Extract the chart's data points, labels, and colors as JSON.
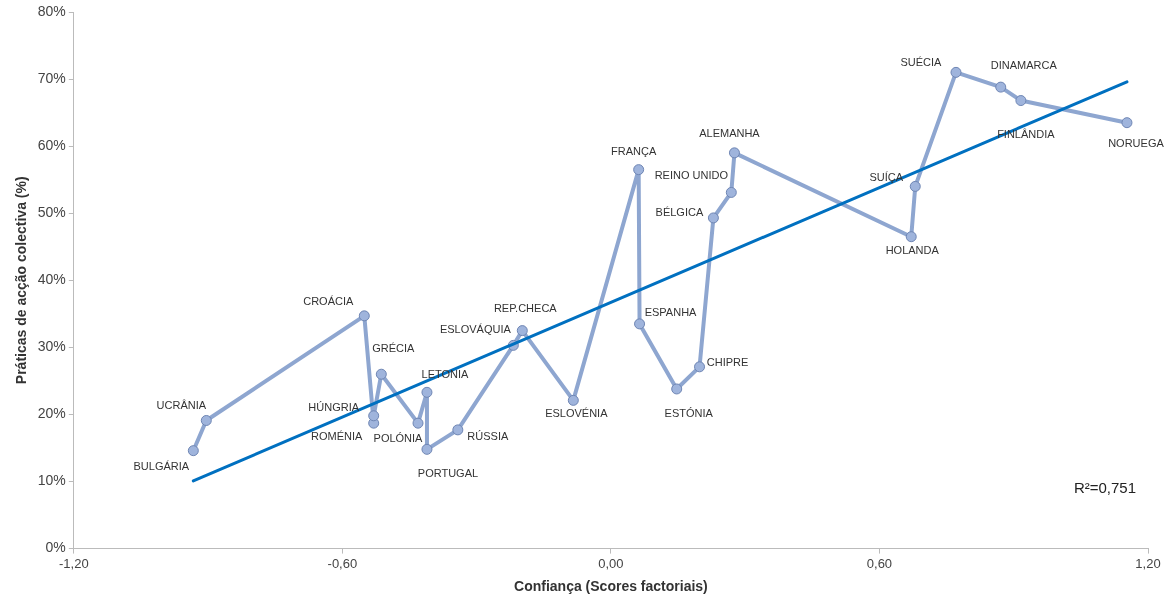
{
  "chart_data": {
    "type": "line",
    "xlabel": "Confiança (Scores factoriais)",
    "ylabel": "Práticas de acção colectiva (%)",
    "xlim": [
      -1.2,
      1.2
    ],
    "xticks": [
      {
        "value": -1.2,
        "label": "-1,20"
      },
      {
        "value": -0.6,
        "label": "-0,60"
      },
      {
        "value": 0,
        "label": "0,00"
      },
      {
        "value": 0.6,
        "label": "0,60"
      },
      {
        "value": 1.2,
        "label": "1,20"
      }
    ],
    "ylim": [
      0,
      80
    ],
    "yticks": [
      {
        "value": 0,
        "label": "0%"
      },
      {
        "value": 10,
        "label": "10%"
      },
      {
        "value": 20,
        "label": "20%"
      },
      {
        "value": 30,
        "label": "30%"
      },
      {
        "value": 40,
        "label": "40%"
      },
      {
        "value": 50,
        "label": "50%"
      },
      {
        "value": 60,
        "label": "60%"
      },
      {
        "value": 70,
        "label": "70%"
      },
      {
        "value": 80,
        "label": "80%"
      }
    ],
    "grid": false,
    "legend": false,
    "marker": "circle",
    "line_style": "solid",
    "series": [
      {
        "type": "line",
        "color": "#8ea6d0",
        "x": [
          -0.933,
          -0.904,
          -0.551,
          -0.53,
          -0.53,
          -0.513,
          -0.431,
          -0.411,
          -0.411,
          -0.342,
          -0.218,
          -0.198,
          -0.084,
          0.062,
          0.064,
          0.147,
          0.198,
          0.229,
          0.269,
          0.276,
          0.671,
          0.68,
          0.771,
          0.871,
          0.916,
          1.153
        ],
        "values": [
          14.6,
          19.1,
          34.7,
          18.7,
          19.8,
          26.0,
          18.7,
          23.3,
          14.8,
          17.7,
          30.3,
          32.5,
          22.1,
          56.5,
          33.5,
          23.8,
          27.1,
          49.3,
          53.1,
          59.0,
          46.5,
          54.0,
          71.0,
          68.8,
          66.8,
          63.5
        ]
      },
      {
        "type": "line",
        "color": "#0070c0",
        "marker": "none",
        "x": [
          -0.933,
          1.153
        ],
        "values": [
          10.1,
          69.6
        ]
      }
    ],
    "annotations": [
      {
        "text": "BULGÁRIA",
        "x": -0.933,
        "y": 14.6
      },
      {
        "text": "UCRÂNIA",
        "x": -0.904,
        "y": 19.1
      },
      {
        "text": "CROÁCIA",
        "x": -0.551,
        "y": 34.7
      },
      {
        "text": "ROMÉNIA",
        "x": -0.53,
        "y": 18.7
      },
      {
        "text": "HÚNGRIA",
        "x": -0.53,
        "y": 19.8
      },
      {
        "text": "GRÉCIA",
        "x": -0.513,
        "y": 26.0
      },
      {
        "text": "POLÓNIA",
        "x": -0.431,
        "y": 18.7
      },
      {
        "text": "LETONIA",
        "x": -0.411,
        "y": 23.3
      },
      {
        "text": "PORTUGAL",
        "x": -0.411,
        "y": 14.8
      },
      {
        "text": "RÚSSIA",
        "x": -0.342,
        "y": 17.7
      },
      {
        "text": "ESLOVÁQUIA",
        "x": -0.218,
        "y": 30.3
      },
      {
        "text": "REP.CHECA",
        "x": -0.198,
        "y": 32.5
      },
      {
        "text": "ESLOVÉNIA",
        "x": -0.084,
        "y": 22.1
      },
      {
        "text": "FRANÇA",
        "x": 0.062,
        "y": 56.5
      },
      {
        "text": "ESPANHA",
        "x": 0.064,
        "y": 33.5
      },
      {
        "text": "ESTÓNIA",
        "x": 0.147,
        "y": 23.8
      },
      {
        "text": "CHIPRE",
        "x": 0.198,
        "y": 27.1
      },
      {
        "text": "BÉLGICA",
        "x": 0.229,
        "y": 49.3
      },
      {
        "text": "REINO UNIDO",
        "x": 0.269,
        "y": 53.1
      },
      {
        "text": "ALEMANHA",
        "x": 0.276,
        "y": 59.0
      },
      {
        "text": "HOLANDA",
        "x": 0.671,
        "y": 46.5
      },
      {
        "text": "SUÍÇA",
        "x": 0.68,
        "y": 54.0
      },
      {
        "text": "SUÉCIA",
        "x": 0.771,
        "y": 71.0
      },
      {
        "text": "DINAMARCA",
        "x": 0.871,
        "y": 68.8
      },
      {
        "text": "FINLÂNDIA",
        "x": 0.916,
        "y": 66.8
      },
      {
        "text": "NORUEGA",
        "x": 1.153,
        "y": 63.5
      },
      "R²=0,751"
    ]
  }
}
